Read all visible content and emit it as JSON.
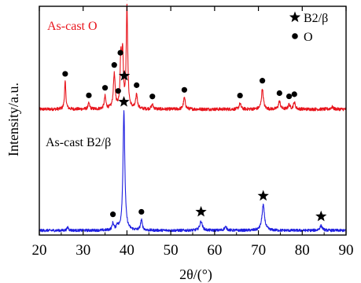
{
  "chart_data": {
    "type": "line",
    "xlabel": "2θ/(°)",
    "ylabel": "Intensity/a.u.",
    "xlim": [
      20,
      90
    ],
    "xticks": [
      20,
      30,
      40,
      50,
      60,
      70,
      80,
      90
    ],
    "yticks_shown": false,
    "grid": false,
    "legend": {
      "placement": "top-right",
      "entries": [
        {
          "marker": "star",
          "label": "B2/β"
        },
        {
          "marker": "circle",
          "label": "O"
        }
      ]
    },
    "series": [
      {
        "name": "As-cast O",
        "color": "#e8141c",
        "baseline": 0.55,
        "noise": 0.007,
        "peaks": [
          {
            "x": 25.9,
            "h": 0.12,
            "w": 0.18
          },
          {
            "x": 31.3,
            "h": 0.025,
            "w": 0.22
          },
          {
            "x": 35.0,
            "h": 0.055,
            "w": 0.22
          },
          {
            "x": 37.1,
            "h": 0.15,
            "w": 0.25
          },
          {
            "x": 38.6,
            "h": 0.21,
            "w": 0.2
          },
          {
            "x": 39.0,
            "h": 0.23,
            "w": 0.2
          },
          {
            "x": 40.0,
            "h": 0.44,
            "w": 0.2
          },
          {
            "x": 42.2,
            "h": 0.065,
            "w": 0.22
          },
          {
            "x": 45.8,
            "h": 0.02,
            "w": 0.25
          },
          {
            "x": 53.1,
            "h": 0.05,
            "w": 0.25
          },
          {
            "x": 65.8,
            "h": 0.025,
            "w": 0.25
          },
          {
            "x": 70.9,
            "h": 0.09,
            "w": 0.25
          },
          {
            "x": 74.8,
            "h": 0.035,
            "w": 0.25
          },
          {
            "x": 77.0,
            "h": 0.02,
            "w": 0.25
          },
          {
            "x": 78.2,
            "h": 0.03,
            "w": 0.25
          },
          {
            "x": 86.8,
            "h": 0.01,
            "w": 0.3
          }
        ],
        "markers": [
          {
            "x": 25.9,
            "symbol": "circle"
          },
          {
            "x": 31.3,
            "symbol": "circle"
          },
          {
            "x": 35.0,
            "symbol": "circle"
          },
          {
            "x": 37.1,
            "symbol": "circle"
          },
          {
            "x": 38.0,
            "symbol": "circle"
          },
          {
            "x": 38.5,
            "symbol": "circle"
          },
          {
            "x": 39.4,
            "symbol": "star"
          },
          {
            "x": 40.0,
            "symbol": "circle"
          },
          {
            "x": 42.2,
            "symbol": "circle"
          },
          {
            "x": 45.8,
            "symbol": "circle"
          },
          {
            "x": 53.1,
            "symbol": "circle"
          },
          {
            "x": 65.8,
            "symbol": "circle"
          },
          {
            "x": 70.9,
            "symbol": "circle"
          },
          {
            "x": 74.8,
            "symbol": "circle"
          },
          {
            "x": 77.0,
            "symbol": "circle"
          },
          {
            "x": 78.2,
            "symbol": "circle"
          }
        ]
      },
      {
        "name": "As-cast B2/β",
        "color": "#1f1fe0",
        "baseline": 0.02,
        "noise": 0.006,
        "peaks": [
          {
            "x": 26.5,
            "h": 0.015,
            "w": 0.2
          },
          {
            "x": 36.8,
            "h": 0.03,
            "w": 0.22
          },
          {
            "x": 37.8,
            "h": 0.02,
            "w": 0.22
          },
          {
            "x": 39.3,
            "h": 0.52,
            "w": 0.25
          },
          {
            "x": 43.3,
            "h": 0.045,
            "w": 0.25
          },
          {
            "x": 56.9,
            "h": 0.04,
            "w": 0.35
          },
          {
            "x": 62.5,
            "h": 0.015,
            "w": 0.35
          },
          {
            "x": 71.1,
            "h": 0.11,
            "w": 0.35
          },
          {
            "x": 84.3,
            "h": 0.02,
            "w": 0.35
          }
        ],
        "markers": [
          {
            "x": 36.8,
            "symbol": "circle"
          },
          {
            "x": 39.3,
            "symbol": "star"
          },
          {
            "x": 43.3,
            "symbol": "circle"
          },
          {
            "x": 56.9,
            "symbol": "star"
          },
          {
            "x": 71.1,
            "symbol": "star"
          },
          {
            "x": 84.3,
            "symbol": "star"
          }
        ]
      }
    ]
  }
}
